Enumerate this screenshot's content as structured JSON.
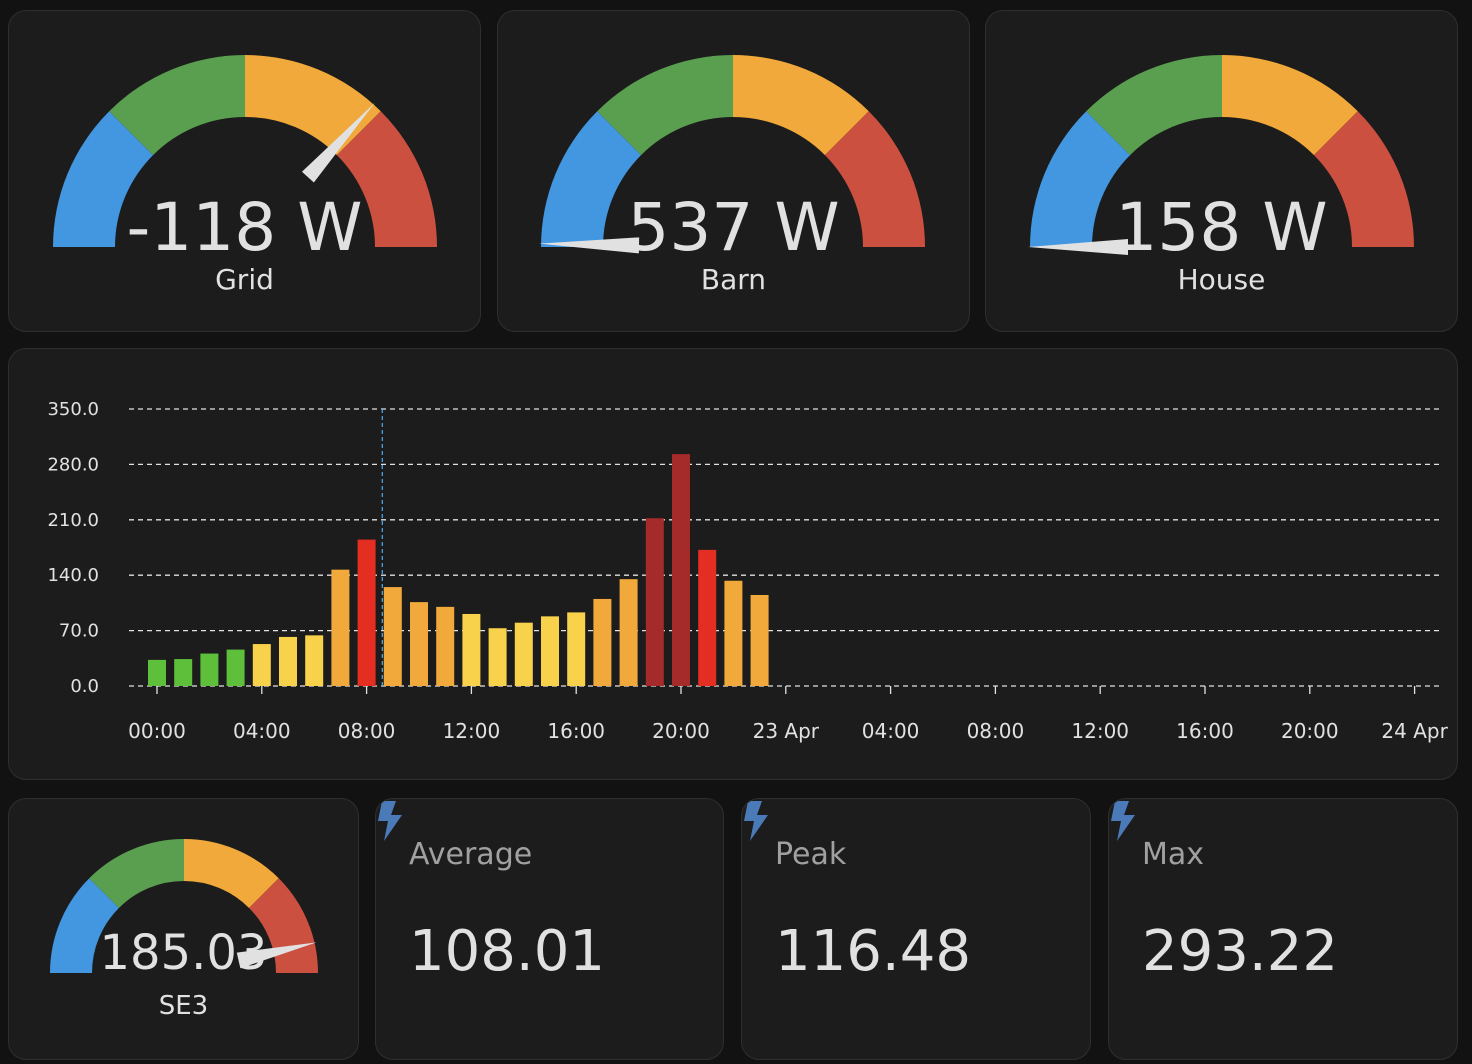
{
  "gauges": {
    "grid": {
      "value_text": "-118 W",
      "name": "Grid"
    },
    "barn": {
      "value_text": "537 W",
      "name": "Barn"
    },
    "house": {
      "value_text": "158 W",
      "name": "House"
    },
    "se3": {
      "value_text": "185.03",
      "name": "SE3"
    }
  },
  "colors": {
    "blue": "#4297e0",
    "green": "#5a9e4f",
    "orange": "#f0a93a",
    "red": "#cc5040",
    "needle": "#e1e1e1",
    "icon": "#4a7ab8"
  },
  "stats": [
    {
      "title": "Average",
      "value": "108.01",
      "icon": "lightning-bolt-icon"
    },
    {
      "title": "Peak",
      "value": "116.48",
      "icon": "lightning-bolt-icon"
    },
    {
      "title": "Max",
      "value": "293.22",
      "icon": "lightning-bolt-icon"
    }
  ],
  "chart_data": {
    "type": "bar",
    "y_ticks": [
      "350.0",
      "280.0",
      "210.0",
      "140.0",
      "70.0",
      "0.0"
    ],
    "ylim": [
      0,
      350
    ],
    "x_ticks": [
      "00:00",
      "04:00",
      "08:00",
      "12:00",
      "16:00",
      "20:00",
      "23 Apr",
      "04:00",
      "08:00",
      "12:00",
      "16:00",
      "20:00",
      "24 Apr"
    ],
    "grid": true,
    "hours": [
      0,
      1,
      2,
      3,
      4,
      5,
      6,
      7,
      8,
      9,
      10,
      11,
      12,
      13,
      14,
      15,
      16,
      17,
      18,
      19,
      20,
      21,
      22,
      23
    ],
    "values": [
      33,
      34,
      41,
      46,
      53,
      62,
      64,
      147,
      185,
      125,
      106,
      100,
      91,
      73,
      80,
      88,
      93,
      110,
      135,
      212,
      293,
      172,
      133,
      115
    ],
    "bar_colors": [
      "#5dbf3a",
      "#5dbf3a",
      "#5dbf3a",
      "#5dbf3a",
      "#f9d24b",
      "#f9d24b",
      "#f9d24b",
      "#f0a93a",
      "#e52e22",
      "#f0a93a",
      "#f0a93a",
      "#f0a93a",
      "#f9d24b",
      "#f9d24b",
      "#f9d24b",
      "#f9d24b",
      "#f9d24b",
      "#f0a93a",
      "#f0a93a",
      "#a52a2a",
      "#a52a2a",
      "#e52e22",
      "#f0a93a",
      "#f0a93a"
    ],
    "now_marker_hour": 8.6,
    "now_marker_color": "#4aa3e0"
  }
}
